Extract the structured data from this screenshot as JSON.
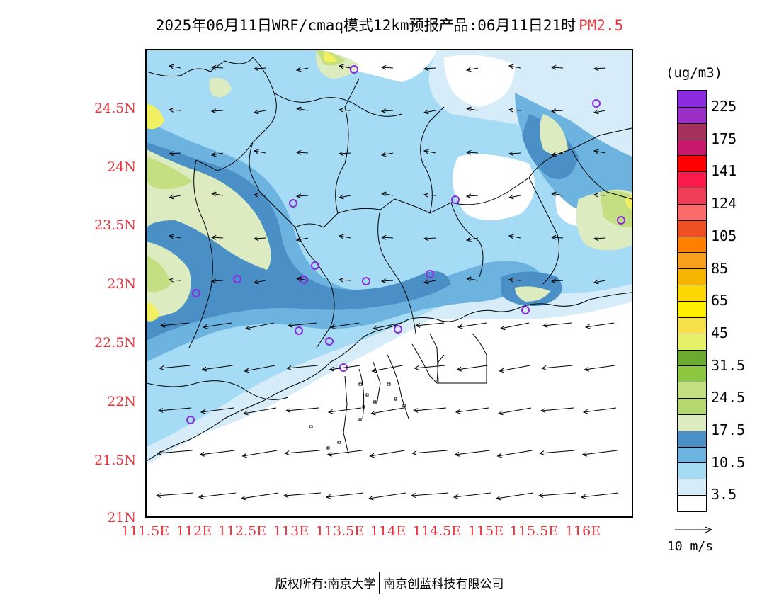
{
  "title": {
    "main": "2025年06月11日WRF/cmaq模式12km预报产品:06月11日21时",
    "pollutant": "PM2.5"
  },
  "map": {
    "lat_ticks": [
      "24.5N",
      "24N",
      "23.5N",
      "23N",
      "22.5N",
      "22N",
      "21.5N",
      "21N"
    ],
    "lon_ticks": [
      "111.5E",
      "112E",
      "112.5E",
      "113E",
      "113.5E",
      "114E",
      "114.5E",
      "115E",
      "115.5E",
      "116E"
    ],
    "lon_range": [
      111.5,
      116.6
    ],
    "lat_range": [
      21.0,
      25.0
    ],
    "colors": {
      "c1": "#ffffff",
      "c2": "#d6edf9",
      "c3": "#a6dbf5",
      "c4": "#6db3e0",
      "c5": "#4a90c6",
      "c6": "#dcebc0",
      "c7": "#c3df82",
      "c8": "#f0f062",
      "station": "#8a2be2",
      "border": "#000000"
    },
    "wind_direction": "easterly"
  },
  "colorbar": {
    "unit": "(ug/m3)",
    "labels": [
      "225",
      "175",
      "141",
      "124",
      "105",
      "85",
      "65",
      "45",
      "31.5",
      "24.5",
      "17.5",
      "10.5",
      "3.5"
    ],
    "colors_top_to_bottom": [
      "#8a2be2",
      "#9a30c8",
      "#a8305c",
      "#c8186e",
      "#ff0000",
      "#ff1a4c",
      "#f03e5a",
      "#ff6a6a",
      "#ee5024",
      "#ff7f00",
      "#f7a01c",
      "#f5b400",
      "#ffd700",
      "#ffee00",
      "#f6e04a",
      "#e8f06a",
      "#6aaa30",
      "#8dc63f",
      "#c3df82",
      "#b6d870",
      "#dcebc0",
      "#4a90c6",
      "#6db3e0",
      "#a6dbf5",
      "#d6edf9",
      "#ffffff"
    ]
  },
  "wind_reference": {
    "label": "10 m/s"
  },
  "footer": {
    "left": "版权所有:南京大学",
    "right": "南京创蓝科技有限公司"
  }
}
